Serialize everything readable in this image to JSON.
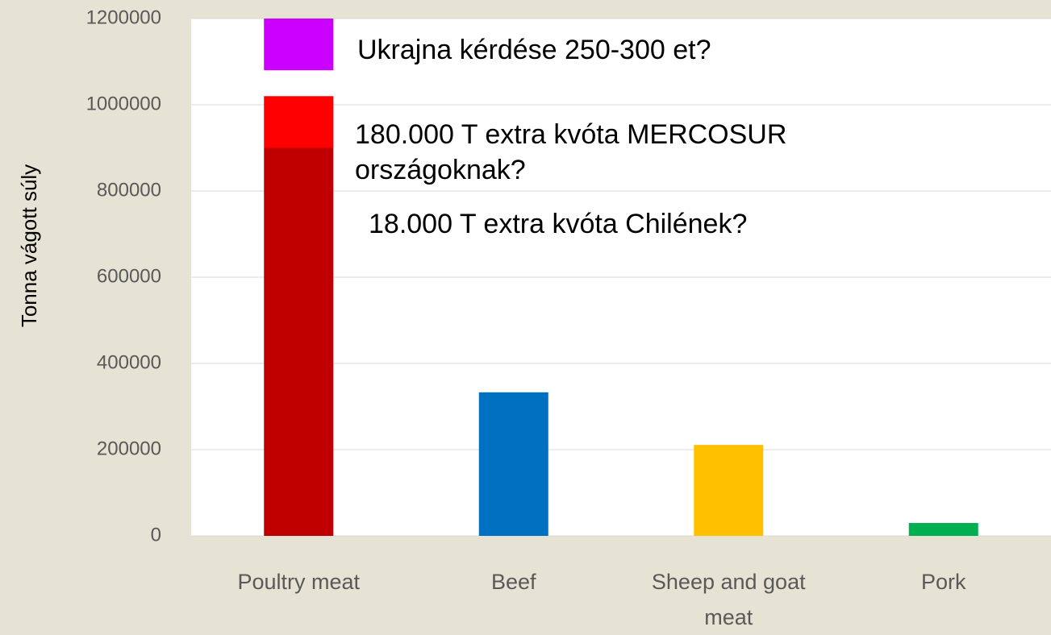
{
  "chart_data": {
    "type": "bar",
    "stacked": true,
    "y_label": "Tonna vágott súly",
    "categories": [
      "Poultry meat",
      "Beef",
      "Sheep and goat meat",
      "Pork"
    ],
    "series": [
      {
        "colors": [
          "#c00000",
          "#0070c0",
          "#ffc000",
          "#00b050"
        ],
        "values": [
          900000,
          333000,
          211000,
          30000
        ]
      },
      {
        "color": "#ff0000",
        "values": [
          120000,
          null,
          null,
          null
        ]
      },
      {
        "color": "none",
        "values": [
          60000,
          null,
          null,
          null
        ]
      },
      {
        "color": "#cc00ff",
        "values": [
          120000,
          null,
          null,
          null
        ]
      }
    ],
    "annotations": [
      "Ukrajna kérdése 250-300 et?",
      "180.000 T extra kvóta  MERCOSUR országoknak?",
      "18.000 T extra kvóta Chilének?"
    ],
    "ylim": [
      0,
      1200000
    ],
    "yticks": [
      0,
      200000,
      400000,
      600000,
      800000,
      1000000,
      1200000
    ],
    "grid": true
  }
}
